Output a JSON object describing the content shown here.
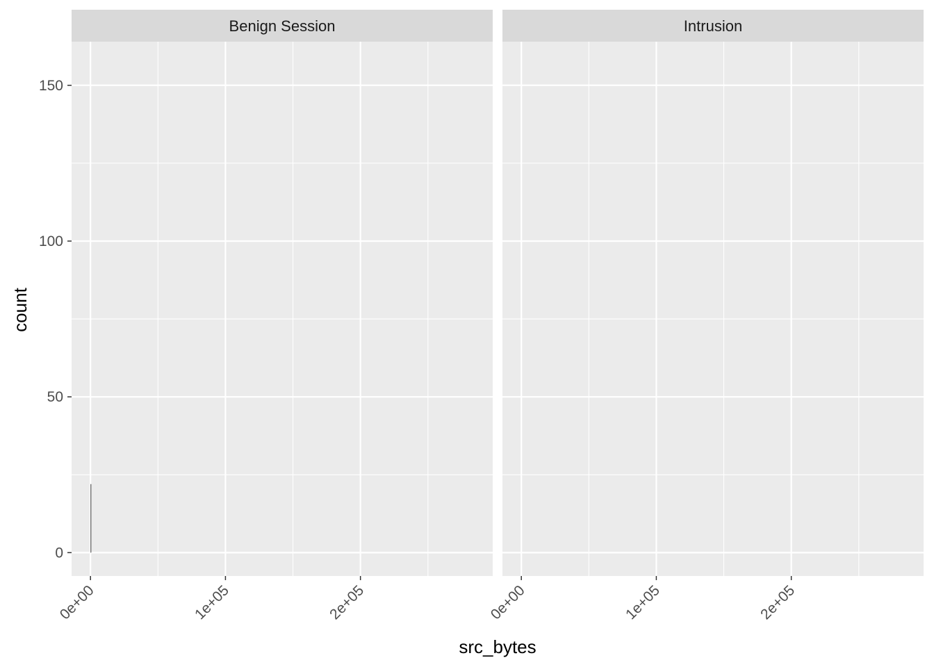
{
  "chart_data": {
    "type": "bar",
    "chart_kind": "faceted histogram",
    "xlabel": "src_bytes",
    "ylabel": "count",
    "x_ticks": [
      0,
      100000,
      200000
    ],
    "x_tick_labels": [
      "0e+00",
      "1e+05",
      "2e+05"
    ],
    "y_ticks": [
      0,
      50,
      100,
      150
    ],
    "y_tick_labels": [
      "0",
      "50",
      "100",
      "150"
    ],
    "xlim": [
      -14000,
      298000
    ],
    "ylim": [
      -7.5,
      164
    ],
    "grid": true,
    "legend": "none",
    "facets": [
      {
        "label": "Benign Session",
        "bars": [
          {
            "x": 0,
            "width": 500,
            "count": 22
          }
        ]
      },
      {
        "label": "Intrusion",
        "bars": []
      }
    ]
  },
  "colors": {
    "panel_background": "#ebebeb",
    "strip_background": "#d9d9d9",
    "grid_line": "#ffffff",
    "bar_fill": "#595959",
    "tick_mark": "#333333"
  }
}
